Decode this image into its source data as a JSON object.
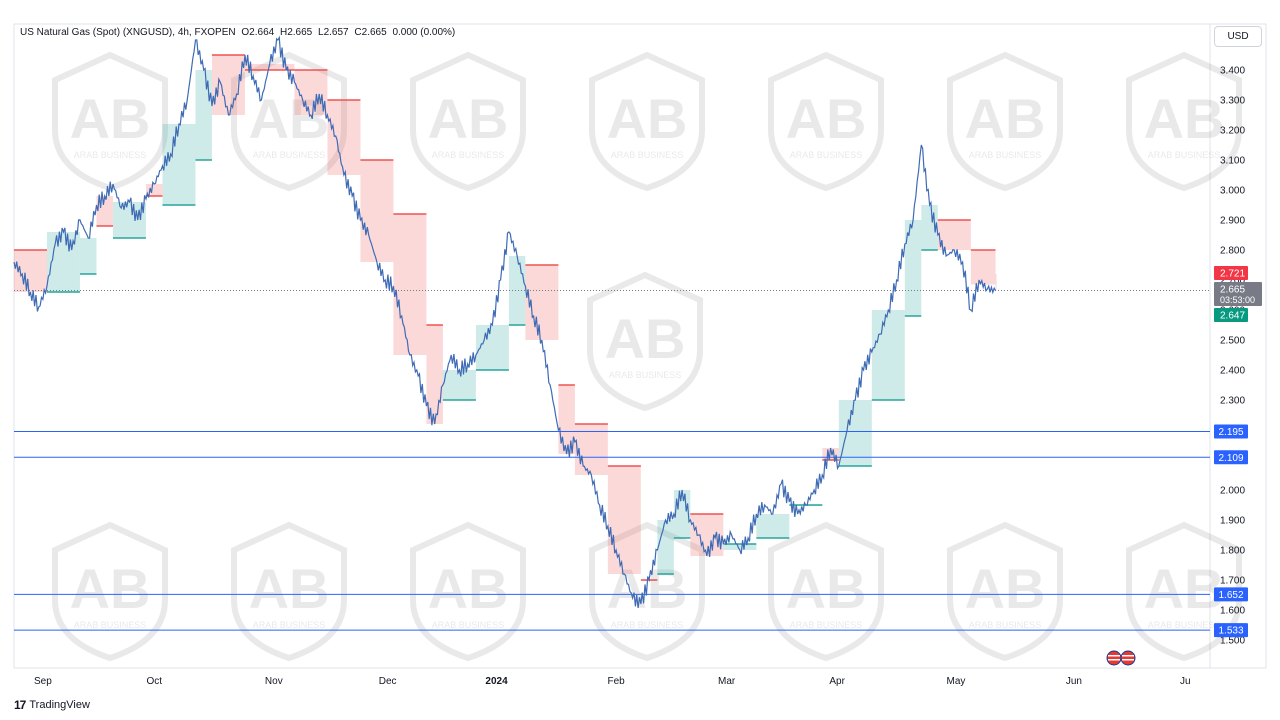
{
  "header": {
    "symbol": "US Natural Gas (Spot) (XNGUSD), 4h, FXOPEN",
    "open": "O2.664",
    "high": "H2.665",
    "low": "L2.657",
    "close": "C2.665",
    "change": "0.000 (0.00%)"
  },
  "currency": "USD",
  "watermark_text": "ARAB BUSINESS",
  "watermark_letters": "AB",
  "footer": {
    "brand": "TradingView",
    "logo": "17"
  },
  "chart_data": {
    "type": "line",
    "interval": "4h",
    "ylim": [
      1.5,
      3.5
    ],
    "grid": false,
    "y_ticks": [
      1.5,
      1.6,
      1.7,
      1.8,
      1.9,
      2.0,
      2.1,
      2.2,
      2.3,
      2.4,
      2.5,
      2.6,
      2.7,
      2.8,
      2.9,
      3.0,
      3.1,
      3.2,
      3.3,
      3.4
    ],
    "y_tick_labels": [
      "1.500",
      "1.600",
      "1.700",
      "1.800",
      "1.900",
      "2.000",
      "2.100",
      "2.200",
      "2.300",
      "2.400",
      "2.500",
      "2.600",
      "2.700",
      "2.800",
      "2.900",
      "3.000",
      "3.100",
      "3.200",
      "3.300",
      "3.400"
    ],
    "x_ticks": [
      {
        "label": "Sep",
        "x": 3.5
      },
      {
        "label": "Oct",
        "x": 17
      },
      {
        "label": "Nov",
        "x": 31.5
      },
      {
        "label": "Dec",
        "x": 45.3
      },
      {
        "label": "2024",
        "x": 58.5
      },
      {
        "label": "Feb",
        "x": 73
      },
      {
        "label": "Mar",
        "x": 86.4
      },
      {
        "label": "Apr",
        "x": 99.8
      },
      {
        "label": "May",
        "x": 114.2
      },
      {
        "label": "Jun",
        "x": 128.5
      },
      {
        "label": "Ju",
        "x": 142
      }
    ],
    "series": [
      {
        "kind": "price",
        "color": "#3f6bb5",
        "points": [
          [
            0,
            2.76
          ],
          [
            1,
            2.72
          ],
          [
            2,
            2.66
          ],
          [
            3,
            2.61
          ],
          [
            4,
            2.68
          ],
          [
            5,
            2.82
          ],
          [
            6,
            2.86
          ],
          [
            7,
            2.8
          ],
          [
            8,
            2.9
          ],
          [
            9,
            2.84
          ],
          [
            10,
            2.95
          ],
          [
            11,
            2.98
          ],
          [
            12,
            3.02
          ],
          [
            13,
            2.94
          ],
          [
            14,
            2.96
          ],
          [
            15,
            2.9
          ],
          [
            16,
            2.97
          ],
          [
            17,
            3.02
          ],
          [
            18,
            3.08
          ],
          [
            19,
            3.12
          ],
          [
            20,
            3.22
          ],
          [
            21,
            3.3
          ],
          [
            22,
            3.5
          ],
          [
            23,
            3.4
          ],
          [
            24,
            3.28
          ],
          [
            25,
            3.36
          ],
          [
            26,
            3.25
          ],
          [
            27,
            3.32
          ],
          [
            28,
            3.45
          ],
          [
            29,
            3.38
          ],
          [
            30,
            3.3
          ],
          [
            31,
            3.42
          ],
          [
            32,
            3.5
          ],
          [
            33,
            3.4
          ],
          [
            34,
            3.36
          ],
          [
            35,
            3.3
          ],
          [
            36,
            3.25
          ],
          [
            37,
            3.32
          ],
          [
            38,
            3.25
          ],
          [
            39,
            3.18
          ],
          [
            40,
            3.05
          ],
          [
            41,
            2.98
          ],
          [
            42,
            2.9
          ],
          [
            43,
            2.85
          ],
          [
            44,
            2.76
          ],
          [
            45,
            2.7
          ],
          [
            46,
            2.68
          ],
          [
            47,
            2.58
          ],
          [
            48,
            2.45
          ],
          [
            49,
            2.38
          ],
          [
            50,
            2.28
          ],
          [
            51,
            2.22
          ],
          [
            52,
            2.35
          ],
          [
            53,
            2.45
          ],
          [
            54,
            2.4
          ],
          [
            55,
            2.42
          ],
          [
            56,
            2.45
          ],
          [
            57,
            2.5
          ],
          [
            58,
            2.55
          ],
          [
            59,
            2.7
          ],
          [
            60,
            2.86
          ],
          [
            61,
            2.78
          ],
          [
            62,
            2.68
          ],
          [
            63,
            2.58
          ],
          [
            64,
            2.5
          ],
          [
            65,
            2.35
          ],
          [
            66,
            2.2
          ],
          [
            67,
            2.12
          ],
          [
            68,
            2.16
          ],
          [
            69,
            2.08
          ],
          [
            70,
            2.05
          ],
          [
            71,
            1.95
          ],
          [
            72,
            1.88
          ],
          [
            73,
            1.8
          ],
          [
            74,
            1.72
          ],
          [
            75,
            1.64
          ],
          [
            76,
            1.62
          ],
          [
            77,
            1.7
          ],
          [
            78,
            1.8
          ],
          [
            79,
            1.9
          ],
          [
            80,
            1.92
          ],
          [
            81,
            2.0
          ],
          [
            82,
            1.9
          ],
          [
            83,
            1.85
          ],
          [
            84,
            1.78
          ],
          [
            85,
            1.84
          ],
          [
            86,
            1.82
          ],
          [
            87,
            1.85
          ],
          [
            88,
            1.8
          ],
          [
            89,
            1.84
          ],
          [
            90,
            1.92
          ],
          [
            91,
            1.95
          ],
          [
            92,
            1.92
          ],
          [
            93,
            2.02
          ],
          [
            94,
            1.96
          ],
          [
            95,
            1.92
          ],
          [
            96,
            1.95
          ],
          [
            97,
            2.0
          ],
          [
            98,
            2.05
          ],
          [
            99,
            2.14
          ],
          [
            100,
            2.08
          ],
          [
            101,
            2.2
          ],
          [
            102,
            2.3
          ],
          [
            103,
            2.4
          ],
          [
            104,
            2.46
          ],
          [
            105,
            2.52
          ],
          [
            106,
            2.6
          ],
          [
            107,
            2.7
          ],
          [
            108,
            2.82
          ],
          [
            109,
            2.9
          ],
          [
            110,
            3.15
          ],
          [
            111,
            2.95
          ],
          [
            112,
            2.85
          ],
          [
            113,
            2.78
          ],
          [
            114,
            2.8
          ],
          [
            115,
            2.76
          ],
          [
            116,
            2.6
          ],
          [
            117,
            2.7
          ],
          [
            118,
            2.67
          ],
          [
            119,
            2.665
          ]
        ]
      },
      {
        "kind": "trailing-band",
        "up_color": "#26a69a",
        "down_color": "#ef5350",
        "points": [
          [
            0,
            2.8,
            "down"
          ],
          [
            4,
            2.66,
            "up"
          ],
          [
            8,
            2.72,
            "up"
          ],
          [
            10,
            2.88,
            "down"
          ],
          [
            12,
            2.84,
            "up"
          ],
          [
            16,
            2.98,
            "down"
          ],
          [
            18,
            2.95,
            "up"
          ],
          [
            22,
            3.1,
            "up"
          ],
          [
            24,
            3.45,
            "down"
          ],
          [
            28,
            3.4,
            "down"
          ],
          [
            34,
            3.4,
            "down"
          ],
          [
            38,
            3.3,
            "down"
          ],
          [
            42,
            3.1,
            "down"
          ],
          [
            46,
            2.92,
            "down"
          ],
          [
            50,
            2.55,
            "down"
          ],
          [
            52,
            2.3,
            "up"
          ],
          [
            56,
            2.4,
            "up"
          ],
          [
            60,
            2.55,
            "up"
          ],
          [
            62,
            2.75,
            "down"
          ],
          [
            66,
            2.35,
            "down"
          ],
          [
            68,
            2.22,
            "down"
          ],
          [
            72,
            2.08,
            "down"
          ],
          [
            76,
            1.7,
            "down"
          ],
          [
            78,
            1.72,
            "up"
          ],
          [
            80,
            1.84,
            "up"
          ],
          [
            82,
            1.92,
            "down"
          ],
          [
            86,
            1.82,
            "up"
          ],
          [
            90,
            1.84,
            "up"
          ],
          [
            94,
            1.95,
            "up"
          ],
          [
            98,
            2.1,
            "down"
          ],
          [
            100,
            2.08,
            "up"
          ],
          [
            104,
            2.3,
            "up"
          ],
          [
            108,
            2.58,
            "up"
          ],
          [
            110,
            2.8,
            "up"
          ],
          [
            112,
            2.9,
            "down"
          ],
          [
            116,
            2.8,
            "down"
          ],
          [
            119,
            2.72,
            "down"
          ]
        ]
      }
    ],
    "horizontal_lines": [
      {
        "value": 2.195,
        "label": "2.195",
        "color": "#2962ff"
      },
      {
        "value": 2.109,
        "label": "2.109",
        "color": "#2962ff"
      },
      {
        "value": 1.652,
        "label": "1.652",
        "color": "#2962ff"
      },
      {
        "value": 1.533,
        "label": "1.533",
        "color": "#2962ff"
      }
    ],
    "price_tags": [
      {
        "value": 2.721,
        "label": "2.721",
        "color": "#f23645"
      },
      {
        "value": 2.665,
        "label": "2.665",
        "sub": "03:53:00",
        "color": "#787b86"
      },
      {
        "value": 2.647,
        "label": "2.647",
        "color": "#089981"
      }
    ],
    "last_price": 2.665
  }
}
